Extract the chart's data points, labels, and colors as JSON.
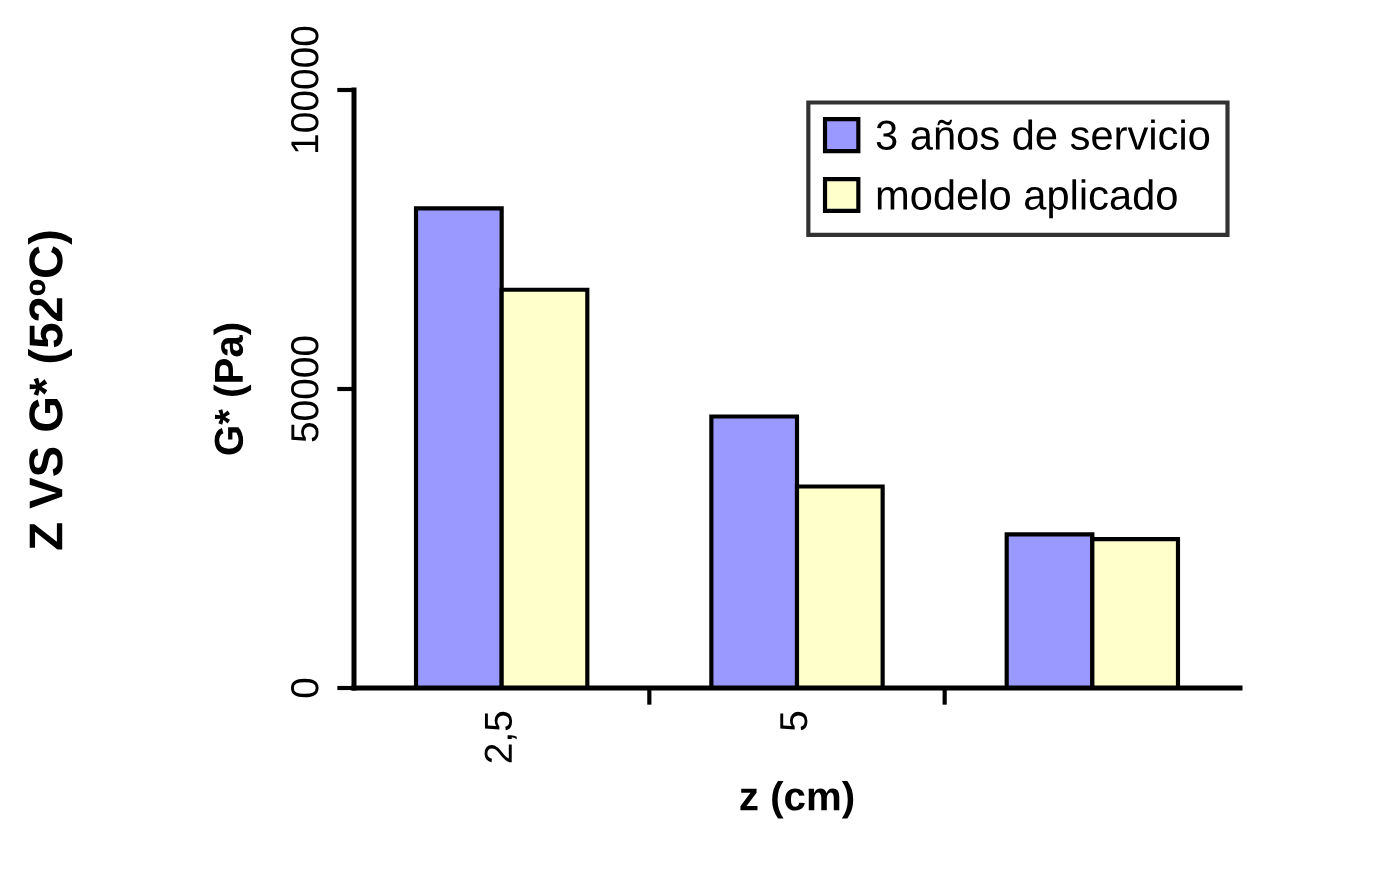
{
  "chart_data": {
    "type": "bar",
    "title": "Z VS G* (52ºC)",
    "xlabel": "z (cm)",
    "ylabel": "G* (Pa)",
    "categories": [
      "2,5",
      "5",
      null
    ],
    "series": [
      {
        "name": "3 años de servicio",
        "color": "#9999ff",
        "values": [
          80200,
          45400,
          25700
        ]
      },
      {
        "name": "modelo aplicado",
        "color": "#ffffcc",
        "values": [
          66600,
          33700,
          24900
        ]
      }
    ],
    "ylim": [
      0,
      100000
    ],
    "yticks": [
      0,
      50000,
      100000
    ],
    "legend": "top right"
  }
}
